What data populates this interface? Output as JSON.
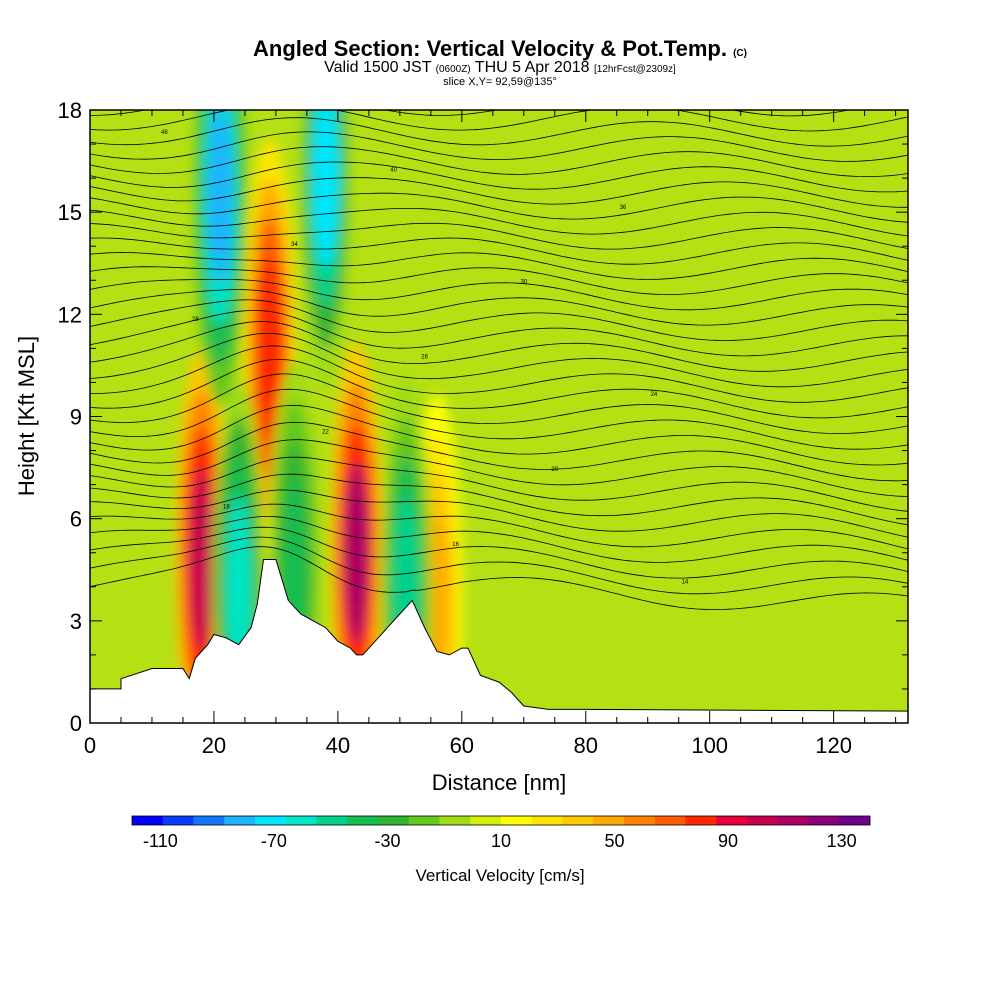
{
  "title": {
    "main": "Angled Section: Vertical Velocity & Pot.Temp.",
    "main_unit": "(C)",
    "valid_prefix": "Valid 1500 JST",
    "valid_utc": "(0600Z)",
    "valid_date": "THU 5 Apr 2018",
    "forecast": "[12hrFcst@2309z]",
    "slice": "slice X,Y= 92,59@135°"
  },
  "chart_data": {
    "type": "heatmap",
    "xlabel": "Distance [nm]",
    "ylabel": "Height [Kft MSL]",
    "xlim": [
      0,
      132
    ],
    "ylim": [
      0,
      18
    ],
    "x_ticks": [
      0,
      20,
      40,
      60,
      80,
      100,
      120
    ],
    "y_ticks": [
      0,
      3,
      6,
      9,
      12,
      15,
      18
    ],
    "colorbar": {
      "label": "Vertical Velocity [cm/s]",
      "tick_labels": [
        "-110",
        "-70",
        "-30",
        "10",
        "50",
        "90",
        "130"
      ],
      "tick_values": [
        -110,
        -70,
        -30,
        10,
        50,
        90,
        130
      ],
      "range": [
        -120,
        140
      ],
      "colors": [
        "#0000ff",
        "#0a3cff",
        "#1478ff",
        "#1eb4ff",
        "#00e6ff",
        "#00e6c8",
        "#00d28c",
        "#14be50",
        "#32b432",
        "#64c81e",
        "#a0dc14",
        "#d2f00a",
        "#ffff00",
        "#ffe600",
        "#ffc800",
        "#ffaa00",
        "#ff8200",
        "#ff5a00",
        "#ff2800",
        "#e6003c",
        "#c80050",
        "#aa0064",
        "#8c0078",
        "#6e008c"
      ]
    },
    "isotherm_labels": [
      "48",
      "40",
      "36",
      "34",
      "30",
      "28",
      "26",
      "24",
      "22",
      "20",
      "18",
      "16",
      "14"
    ],
    "terrain_profile": [
      [
        0,
        1.0
      ],
      [
        5,
        1.0
      ],
      [
        5,
        1.3
      ],
      [
        10,
        1.6
      ],
      [
        13,
        1.6
      ],
      [
        15,
        1.6
      ],
      [
        16,
        1.3
      ],
      [
        17,
        1.9
      ],
      [
        19,
        2.3
      ],
      [
        20,
        2.6
      ],
      [
        22,
        2.5
      ],
      [
        24,
        2.3
      ],
      [
        26,
        2.8
      ],
      [
        27,
        3.5
      ],
      [
        28,
        4.8
      ],
      [
        30,
        4.8
      ],
      [
        32,
        3.6
      ],
      [
        34,
        3.2
      ],
      [
        36,
        3.0
      ],
      [
        38,
        2.8
      ],
      [
        40,
        2.4
      ],
      [
        42,
        2.2
      ],
      [
        43,
        2.0
      ],
      [
        44,
        2.0
      ],
      [
        46,
        2.4
      ],
      [
        48,
        2.8
      ],
      [
        50,
        3.2
      ],
      [
        52,
        3.6
      ],
      [
        54,
        2.8
      ],
      [
        56,
        2.1
      ],
      [
        58,
        2.0
      ],
      [
        60,
        2.2
      ],
      [
        61,
        2.2
      ],
      [
        63,
        1.4
      ],
      [
        66,
        1.2
      ],
      [
        68,
        0.9
      ],
      [
        70,
        0.5
      ],
      [
        74,
        0.4
      ],
      [
        80,
        0.4
      ],
      [
        132,
        0.35
      ]
    ],
    "updraft_cores": [
      {
        "x": 18,
        "y": 4.8,
        "value": 100
      },
      {
        "x": 29,
        "y": 11.0,
        "value": 85
      },
      {
        "x": 43,
        "y": 5.0,
        "value": 110
      },
      {
        "x": 56,
        "y": 3.5,
        "value": 45
      }
    ],
    "downdraft_cores": [
      {
        "x": 21,
        "y": 15.5,
        "value": -80
      },
      {
        "x": 24,
        "y": 4.0,
        "value": -60
      },
      {
        "x": 33,
        "y": 4.5,
        "value": -40
      },
      {
        "x": 38,
        "y": 16.0,
        "value": -70
      },
      {
        "x": 51,
        "y": 4.0,
        "value": -50
      }
    ]
  }
}
